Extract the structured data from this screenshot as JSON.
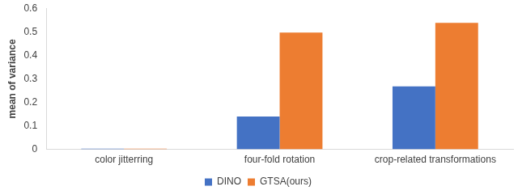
{
  "chart_data": {
    "type": "bar",
    "categories": [
      "color jitterring",
      "four-fold rotation",
      "crop-related transformations"
    ],
    "series": [
      {
        "name": "DINO",
        "color": "#4472c4",
        "values": [
          0.003,
          0.14,
          0.268
        ]
      },
      {
        "name": "GTSA(ours)",
        "color": "#ed7d31",
        "values": [
          0.003,
          0.497,
          0.538
        ]
      }
    ],
    "y_label": "mean of variance",
    "ylim": [
      0,
      0.6
    ],
    "yticks": [
      0,
      0.1,
      0.2,
      0.3,
      0.4,
      0.5,
      0.6
    ],
    "grid": false,
    "legend": "bottom"
  }
}
